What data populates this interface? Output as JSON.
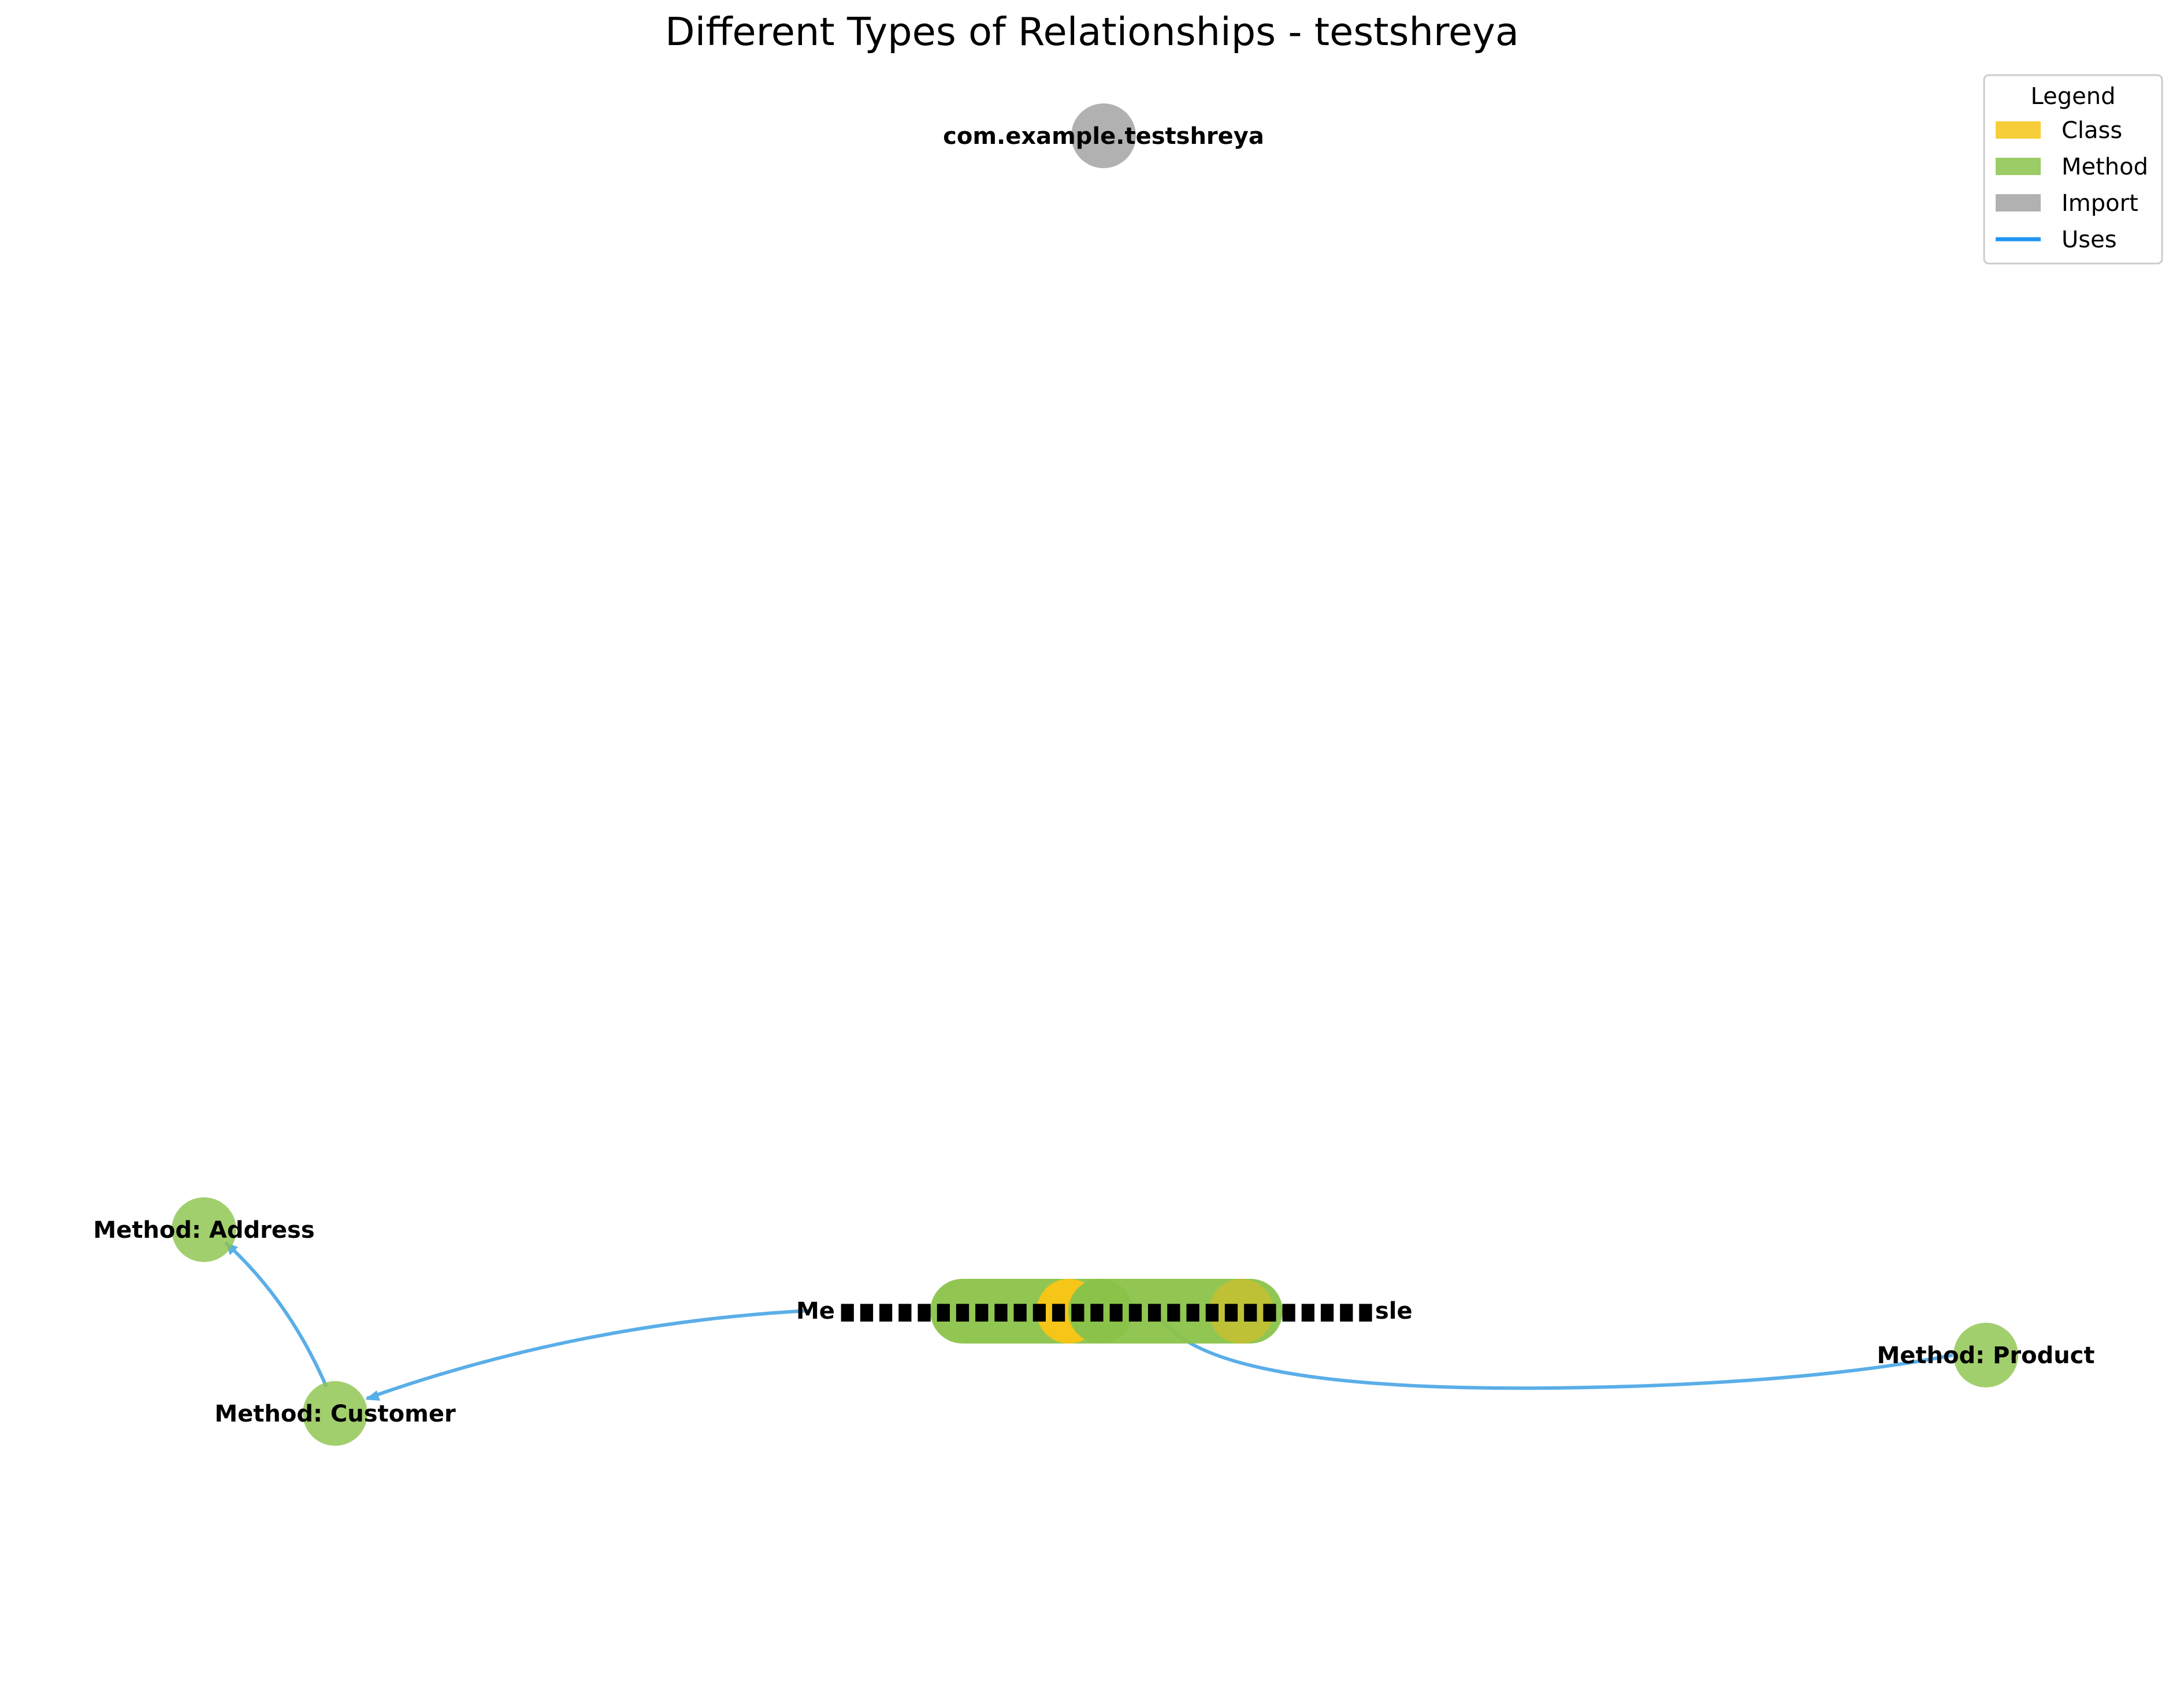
{
  "title": "Different Types of Relationships - testshreya",
  "colors": {
    "class": "#f5c518",
    "method": "#8bc34a",
    "import": "#9e9e9e",
    "uses": "#2196f3"
  },
  "legend": {
    "title": "Legend",
    "items": [
      {
        "label": "Class",
        "kind": "patch",
        "color": "#f5c518"
      },
      {
        "label": "Method",
        "kind": "patch",
        "color": "#8bc34a"
      },
      {
        "label": "Import",
        "kind": "patch",
        "color": "#9e9e9e"
      },
      {
        "label": "Uses",
        "kind": "line",
        "color": "#2196f3"
      }
    ]
  },
  "nodes": [
    {
      "id": "import-pkg",
      "label": "com.example.testshreya",
      "type": "import"
    },
    {
      "id": "method-address",
      "label": "Method: Address",
      "type": "method"
    },
    {
      "id": "method-customer",
      "label": "Method: Customer",
      "type": "method"
    },
    {
      "id": "method-product",
      "label": "Method: Product",
      "type": "method"
    }
  ],
  "cluster": {
    "description": "overlapping class and method nodes",
    "left_label_fragment": "Me",
    "right_label_fragment": "sle"
  },
  "edges": [
    {
      "from": "method-customer",
      "to": "method-address",
      "type": "uses"
    },
    {
      "from": "cluster",
      "to": "method-customer",
      "type": "uses"
    },
    {
      "from": "cluster",
      "to": "method-product",
      "type": "uses"
    }
  ]
}
